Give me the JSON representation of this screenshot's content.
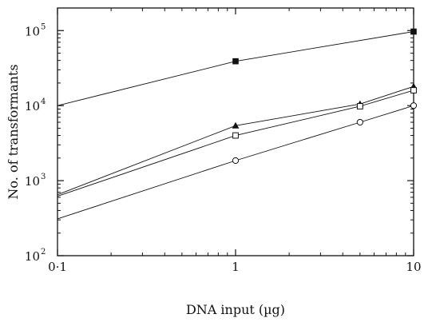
{
  "chart_data": {
    "type": "line",
    "title": "",
    "xlabel": "DNA input (µg)",
    "ylabel": "No. of transformants",
    "xscale": "log",
    "yscale": "log",
    "xlim": [
      0.1,
      10
    ],
    "ylim": [
      100,
      200000
    ],
    "grid": false,
    "legend": "none",
    "x_ticks": [
      {
        "value": 0.1,
        "label": "0·1"
      },
      {
        "value": 1,
        "label": "1"
      },
      {
        "value": 10,
        "label": "10"
      }
    ],
    "y_ticks": [
      {
        "value": 100,
        "base": "10",
        "exp": "2"
      },
      {
        "value": 1000,
        "base": "10",
        "exp": "3"
      },
      {
        "value": 10000,
        "base": "10",
        "exp": "4"
      },
      {
        "value": 100000,
        "base": "10",
        "exp": "5"
      }
    ],
    "series": [
      {
        "marker": "filled-square",
        "points": [
          [
            0.1,
            10000
          ],
          [
            1,
            39000
          ],
          [
            10,
            97000
          ]
        ]
      },
      {
        "marker": "filled-triangle",
        "points": [
          [
            0.1,
            650
          ],
          [
            1,
            5400
          ],
          [
            5,
            10500
          ],
          [
            10,
            18000
          ]
        ]
      },
      {
        "marker": "open-square",
        "points": [
          [
            0.1,
            620
          ],
          [
            1,
            4000
          ],
          [
            5,
            9800
          ],
          [
            10,
            16000
          ]
        ]
      },
      {
        "marker": "open-circle",
        "points": [
          [
            0.1,
            310
          ],
          [
            1,
            1850
          ],
          [
            5,
            6000
          ],
          [
            10,
            10000
          ]
        ]
      }
    ]
  }
}
